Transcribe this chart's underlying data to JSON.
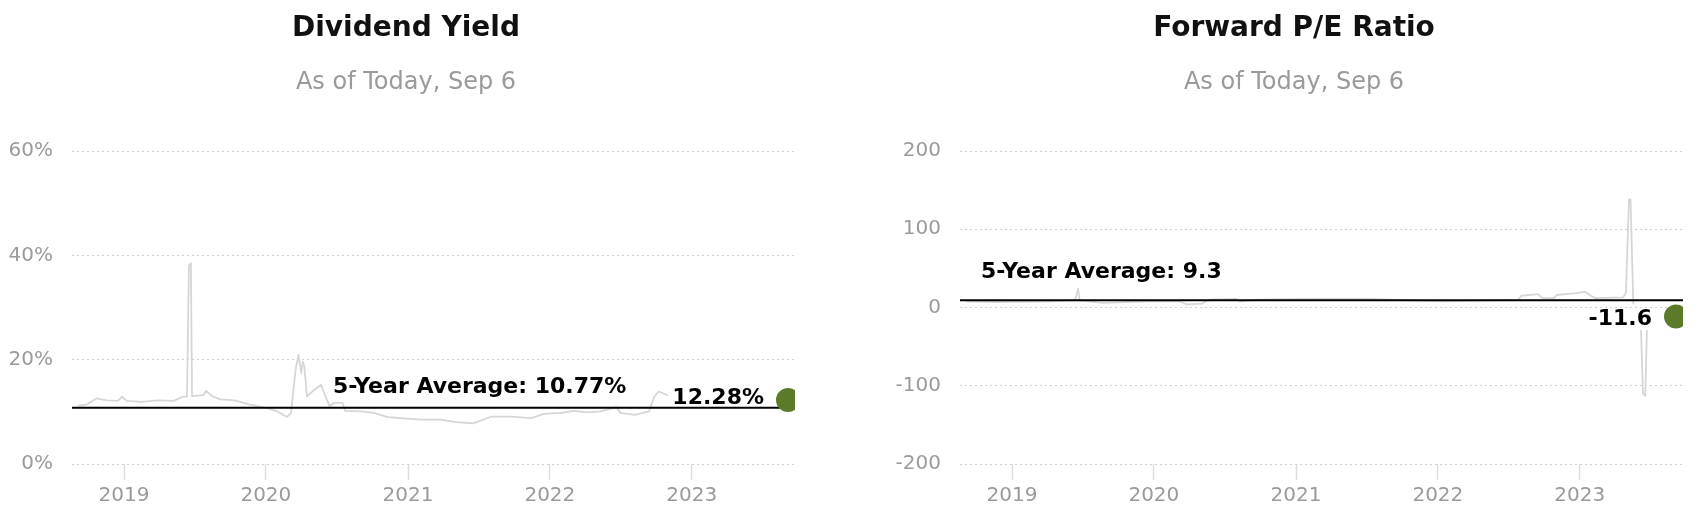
{
  "chart_data": [
    {
      "type": "line",
      "title": "Dividend Yield",
      "subtitle": "As of Today, Sep 6",
      "xlim": [
        "2018-08-20",
        "2023-09-24"
      ],
      "xticks": [
        "2019",
        "2020",
        "2021",
        "2022",
        "2023"
      ],
      "ylim": [
        0,
        60
      ],
      "yticks": [
        {
          "value": 0,
          "label": "0%"
        },
        {
          "value": 20,
          "label": "20%"
        },
        {
          "value": 40,
          "label": "40%"
        },
        {
          "value": 60,
          "label": "60%"
        }
      ],
      "grid": "y",
      "series": [
        {
          "color": "#d6d6d6",
          "x": [
            "2018-09-06",
            "2018-09-27",
            "2018-10-23",
            "2018-11-17",
            "2018-12-16",
            "2018-12-27",
            "2019-01-08",
            "2019-02-14",
            "2019-03-30",
            "2019-05-09",
            "2019-05-31",
            "2019-06-12",
            "2019-06-17",
            "2019-06-22",
            "2019-06-25",
            "2019-07-24",
            "2019-07-31",
            "2019-08-18",
            "2019-09-06",
            "2019-10-12",
            "2019-11-21",
            "2020-01-04",
            "2020-01-30",
            "2020-02-24",
            "2020-03-06",
            "2020-03-10",
            "2020-03-18",
            "2020-03-25",
            "2020-04-01",
            "2020-04-05",
            "2020-04-09",
            "2020-04-16",
            "2020-05-04",
            "2020-05-22",
            "2020-05-30",
            "2020-06-13",
            "2020-06-24",
            "2020-07-16",
            "2020-07-23",
            "2020-09-02",
            "2020-10-05",
            "2020-11-10",
            "2020-12-13",
            "2021-02-03",
            "2021-03-26",
            "2021-05-09",
            "2021-06-18",
            "2021-08-04",
            "2021-09-24",
            "2021-11-14",
            "2021-12-17",
            "2022-01-30",
            "2022-03-04",
            "2022-04-06",
            "2022-05-12",
            "2022-06-21",
            "2022-07-02",
            "2022-08-08",
            "2022-09-13",
            "2022-09-27",
            "2022-10-08",
            "2022-10-30"
          ],
          "values": [
            11.2,
            11.4,
            12.6,
            12.2,
            12.1,
            12.9,
            12.1,
            11.9,
            12.2,
            12.1,
            12.9,
            12.9,
            38.0,
            38.5,
            13.0,
            13.2,
            14.0,
            12.9,
            12.4,
            12.2,
            11.4,
            10.7,
            10.1,
            9.0,
            9.8,
            12.9,
            18.3,
            20.9,
            17.4,
            19.6,
            18.7,
            12.9,
            14.2,
            15.2,
            13.6,
            11.1,
            11.7,
            11.7,
            10.2,
            10.1,
            9.8,
            9.0,
            8.8,
            8.5,
            8.5,
            8.0,
            7.8,
            9.1,
            9.1,
            8.8,
            9.6,
            9.8,
            10.2,
            9.9,
            10.1,
            10.9,
            9.8,
            9.4,
            10.1,
            12.9,
            13.9,
            13.2
          ]
        },
        {
          "type": "scatter",
          "color": "#5b7b2b",
          "marker": "circle",
          "x": [
            "2023-09-06"
          ],
          "values": [
            12.28
          ],
          "value_labels": [
            "12.28%"
          ]
        }
      ],
      "ref_lines": [
        {
          "axis": "y",
          "value": 10.77,
          "label": "5-Year Average: 10.77%",
          "color": "#000000"
        }
      ]
    },
    {
      "type": "line",
      "title": "Forward P/E Ratio",
      "subtitle": "As of Today, Sep 6",
      "xlim": [
        "2018-08-20",
        "2023-09-24"
      ],
      "xticks": [
        "2019",
        "2020",
        "2021",
        "2022",
        "2023"
      ],
      "ylim": [
        -200,
        200
      ],
      "yticks": [
        -200,
        -100,
        0,
        100,
        200
      ],
      "grid": "y",
      "series": [
        {
          "color": "#d6d6d6",
          "x": [
            "2018-09-06",
            "2018-11-28",
            "2019-04-05",
            "2019-06-12",
            "2019-06-20",
            "2019-06-24",
            "2019-08-22",
            "2019-12-20",
            "2020-03-06",
            "2020-03-25",
            "2020-05-04",
            "2020-05-22",
            "2020-07-31",
            "2020-08-08",
            "2020-09-27",
            "2021-02-06",
            "2021-07-09",
            "2021-10-19",
            "2022-01-15",
            "2022-05-23",
            "2022-07-27",
            "2022-08-04",
            "2022-09-16",
            "2022-09-27",
            "2022-10-27",
            "2022-11-03",
            "2022-12-17",
            "2023-01-15",
            "2023-01-30",
            "2023-02-10",
            "2023-04-23",
            "2023-04-30",
            "2023-05-08",
            "2023-05-12",
            "2023-05-19",
            "2023-05-27",
            "2023-06-08",
            "2023-06-13",
            "2023-06-19",
            "2023-06-23"
          ],
          "values": [
            8,
            7,
            8,
            9,
            24,
            9,
            6,
            8,
            8,
            4,
            5,
            10,
            11,
            8,
            10,
            11,
            11,
            9,
            8,
            9,
            10,
            15,
            17,
            12,
            12,
            16,
            18,
            20,
            15,
            12,
            13,
            19,
            138,
            138,
            5,
            null,
            -30,
            -110,
            -113,
            -30
          ]
        },
        {
          "type": "scatter",
          "color": "#5b7b2b",
          "marker": "circle",
          "x": [
            "2023-09-06"
          ],
          "values": [
            -11.6
          ],
          "value_labels": [
            "-11.6"
          ]
        }
      ],
      "ref_lines": [
        {
          "axis": "y",
          "value": 9.3,
          "label": "5-Year Average: 9.3",
          "color": "#000000"
        }
      ]
    }
  ]
}
